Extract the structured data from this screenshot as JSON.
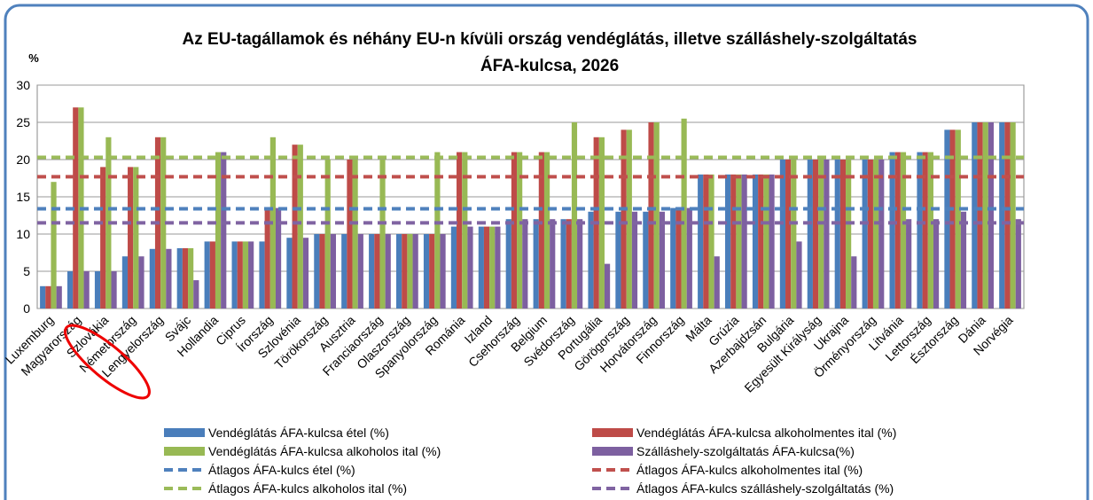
{
  "chart_data": {
    "type": "bar",
    "title": [
      "Az EU-tagállamok és néhány EU-n kívüli ország vendéglátás, illetve szálláshely-szolgáltatás",
      "ÁFA-kulcsa, 2026"
    ],
    "ylabel": "%",
    "categories": [
      "Luxemburg",
      "Magyarország",
      "Szlovákia",
      "Németország",
      "Lengyelország",
      "Svájc",
      "Hollandia",
      "Ciprus",
      "Írország",
      "Szlovénia",
      "Törökország",
      "Ausztria",
      "Franciaország",
      "Olaszország",
      "Spanyolország",
      "Románia",
      "Izland",
      "Csehország",
      "Belgium",
      "Svédország",
      "Portugália",
      "Görögország",
      "Horvátország",
      "Finnország",
      "Málta",
      "Grúzia",
      "Azerbajdzsán",
      "Bulgária",
      "Egyesült Királyság",
      "Ukrajna",
      "Örményország",
      "Litvánia",
      "Lettország",
      "Észtország",
      "Dánia",
      "Norvégia"
    ],
    "series": [
      {
        "name": "Vendéglátás ÁFA-kulcsa étel (%)",
        "color": "#4a7ebb",
        "values": [
          3,
          5,
          5,
          7,
          8,
          8.1,
          9,
          9,
          9,
          9.5,
          10,
          10,
          10,
          10,
          10,
          11,
          11,
          12,
          12,
          12,
          13,
          13,
          13,
          13.5,
          18,
          18,
          18,
          20,
          20,
          20,
          20,
          21,
          21,
          24,
          25,
          25
        ]
      },
      {
        "name": "Vendéglátás ÁFA-kulcsa alkoholmentes ital (%)",
        "color": "#be4b48",
        "values": [
          3,
          27,
          19,
          19,
          23,
          8.1,
          9,
          9,
          13.5,
          22,
          10,
          20,
          10,
          10,
          10,
          21,
          11,
          21,
          21,
          12,
          23,
          24,
          25,
          13.5,
          18,
          18,
          18,
          20,
          20,
          20,
          20,
          21,
          21,
          24,
          25,
          25
        ]
      },
      {
        "name": "Vendéglátás ÁFA-kulcsa alkoholos ital (%)",
        "color": "#98b954",
        "values": [
          17,
          27,
          23,
          19,
          23,
          8.1,
          21,
          9,
          23,
          22,
          20,
          20,
          20,
          10,
          21,
          21,
          11,
          21,
          21,
          25,
          23,
          24,
          25,
          25.5,
          18,
          18,
          18,
          20,
          20,
          20,
          20,
          21,
          21,
          24,
          25,
          25
        ]
      },
      {
        "name": "Szálláshely-szolgáltatás ÁFA-kulcsa(%)",
        "color": "#7d60a0",
        "values": [
          3,
          5,
          5,
          7,
          8,
          3.8,
          21,
          9,
          13.5,
          9.5,
          10,
          10,
          10,
          10,
          10,
          11,
          11,
          12,
          12,
          12,
          6,
          13,
          13,
          13.5,
          7,
          18,
          18,
          9,
          20,
          7,
          20,
          12,
          12,
          13,
          25,
          12
        ]
      }
    ],
    "averages": [
      {
        "name": "Átlagos ÁFA-kulcs étel (%)",
        "color": "#4f81bd",
        "value": 13.4
      },
      {
        "name": "Átlagos  ÁFA-kulcs alkoholmentes ital (%)",
        "color": "#c0504d",
        "value": 17.7
      },
      {
        "name": "Átlagos ÁFA-kulcs alkoholos ital (%)",
        "color": "#9bbb59",
        "value": 20.3
      },
      {
        "name": "Átlagos ÁFA-kulcs szálláshely-szolgáltatás (%)",
        "color": "#8064a2",
        "value": 11.5
      }
    ],
    "ylim": [
      0,
      30
    ],
    "yticks": [
      0,
      5,
      10,
      15,
      20,
      25,
      30
    ],
    "grid": true
  }
}
